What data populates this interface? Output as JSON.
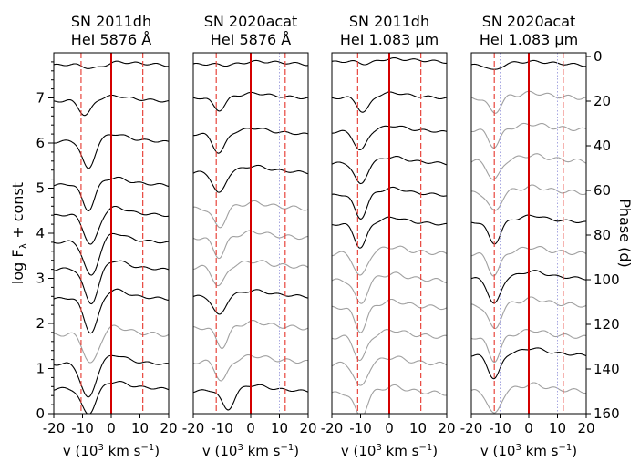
{
  "chart_data": {
    "type": "line",
    "y_axis_label": "log F",
    "y_axis_label_sub": "λ",
    "y_axis_label_rest": " + const",
    "y_ticks": [
      0,
      1,
      2,
      3,
      4,
      5,
      6,
      7
    ],
    "ylim": [
      0,
      8
    ],
    "secondary_axis_label": "Phase (d)",
    "secondary_ticks": [
      0,
      20,
      40,
      60,
      80,
      100,
      120,
      140,
      160
    ],
    "secondary_lim": [
      0,
      160
    ],
    "x_axis_label_main": "v (10",
    "x_axis_label_sup1": "3",
    "x_axis_label_mid": " km s",
    "x_axis_label_sup2": "−1",
    "x_axis_label_end": ")",
    "x_ticks": [
      -20,
      -10,
      0,
      10,
      20
    ],
    "x_tick_labels": [
      "-20",
      "-10",
      "0",
      "10",
      "20"
    ],
    "xlim": [
      -20,
      20
    ],
    "panels": [
      {
        "title_line1": "SN 2011dh",
        "title_line2": "HeI 5876 Å",
        "dashed_lines_x": [
          -10.5,
          11
        ],
        "dotted_lines_x": [],
        "spectra": [
          {
            "offset": 7.78,
            "color": "black",
            "depth": 0.12,
            "vmin": -6,
            "width": 5
          },
          {
            "offset": 6.98,
            "color": "black",
            "depth": 0.35,
            "vmin": -9,
            "width": 3
          },
          {
            "offset": 6.08,
            "color": "black",
            "depth": 0.65,
            "vmin": -8,
            "width": 3
          },
          {
            "offset": 5.12,
            "color": "black",
            "depth": 0.6,
            "vmin": -8,
            "width": 3
          },
          {
            "offset": 4.45,
            "color": "black",
            "depth": 0.7,
            "vmin": -7,
            "width": 3.5
          },
          {
            "offset": 3.85,
            "color": "black",
            "depth": 0.8,
            "vmin": -7,
            "width": 3.5
          },
          {
            "offset": 3.25,
            "color": "black",
            "depth": 0.8,
            "vmin": -7,
            "width": 3.5
          },
          {
            "offset": 2.6,
            "color": "black",
            "depth": 0.8,
            "vmin": -7,
            "width": 3.5
          },
          {
            "offset": 1.8,
            "color": "gray",
            "depth": 0.7,
            "vmin": -7,
            "width": 3.5
          },
          {
            "offset": 1.15,
            "color": "black",
            "depth": 0.8,
            "vmin": -8,
            "width": 3.5
          },
          {
            "offset": 0.6,
            "color": "black",
            "depth": 0.6,
            "vmin": -8,
            "width": 3.5
          }
        ]
      },
      {
        "title_line1": "SN 2020acat",
        "title_line2": "HeI 5876 Å",
        "dashed_lines_x": [
          -12,
          12
        ],
        "dotted_lines_x": [
          -10,
          10
        ],
        "spectra": [
          {
            "offset": 7.8,
            "color": "black",
            "depth": 0.06,
            "vmin": -8,
            "width": 6
          },
          {
            "offset": 7.05,
            "color": "black",
            "depth": 0.3,
            "vmin": -11,
            "width": 3
          },
          {
            "offset": 6.25,
            "color": "black",
            "depth": 0.45,
            "vmin": -11,
            "width": 3
          },
          {
            "offset": 5.4,
            "color": "black",
            "depth": 0.5,
            "vmin": -11,
            "width": 3
          },
          {
            "offset": 4.6,
            "color": "gray",
            "depth": 0.45,
            "vmin": -11,
            "width": 3
          },
          {
            "offset": 3.95,
            "color": "gray",
            "depth": 0.45,
            "vmin": -11,
            "width": 3
          },
          {
            "offset": 3.3,
            "color": "gray",
            "depth": 0.45,
            "vmin": -11,
            "width": 3
          },
          {
            "offset": 2.65,
            "color": "black",
            "depth": 0.45,
            "vmin": -11,
            "width": 3
          },
          {
            "offset": 1.95,
            "color": "gray",
            "depth": 0.45,
            "vmin": -10,
            "width": 3
          },
          {
            "offset": 1.2,
            "color": "gray",
            "depth": 0.45,
            "vmin": -10,
            "width": 3
          },
          {
            "offset": 0.55,
            "color": "black",
            "depth": 0.45,
            "vmin": -8,
            "width": 3
          }
        ]
      },
      {
        "title_line1": "SN 2011dh",
        "title_line2": "HeI 1.083 µm",
        "dashed_lines_x": [
          -11,
          11
        ],
        "dotted_lines_x": [],
        "spectra": [
          {
            "offset": 7.85,
            "color": "black",
            "depth": 0.08,
            "vmin": -8,
            "width": 4
          },
          {
            "offset": 7.05,
            "color": "black",
            "depth": 0.35,
            "vmin": -9,
            "width": 3
          },
          {
            "offset": 6.3,
            "color": "black",
            "depth": 0.45,
            "vmin": -10,
            "width": 3
          },
          {
            "offset": 5.6,
            "color": "black",
            "depth": 0.5,
            "vmin": -10,
            "width": 3
          },
          {
            "offset": 4.9,
            "color": "black",
            "depth": 0.55,
            "vmin": -10,
            "width": 3
          },
          {
            "offset": 4.25,
            "color": "black",
            "depth": 0.55,
            "vmin": -10,
            "width": 3
          },
          {
            "offset": 3.6,
            "color": "gray",
            "depth": 0.55,
            "vmin": -10,
            "width": 3
          },
          {
            "offset": 3.0,
            "color": "gray",
            "depth": 0.55,
            "vmin": -10,
            "width": 3
          },
          {
            "offset": 2.4,
            "color": "gray",
            "depth": 0.55,
            "vmin": -10,
            "width": 3
          },
          {
            "offset": 1.75,
            "color": "gray",
            "depth": 0.55,
            "vmin": -10,
            "width": 3
          },
          {
            "offset": 1.15,
            "color": "gray",
            "depth": 0.55,
            "vmin": -10,
            "width": 3
          },
          {
            "offset": 0.5,
            "color": "gray",
            "depth": 0.55,
            "vmin": -10,
            "width": 3
          }
        ]
      },
      {
        "title_line1": "SN 2020acat",
        "title_line2": "HeI 1.083 µm",
        "dashed_lines_x": [
          -12,
          12
        ],
        "dotted_lines_x": [
          -10,
          10
        ],
        "spectra": [
          {
            "offset": 7.78,
            "color": "black",
            "depth": 0.15,
            "vmin": -12,
            "width": 3
          },
          {
            "offset": 7.05,
            "color": "gray",
            "depth": 0.35,
            "vmin": -12,
            "width": 3
          },
          {
            "offset": 6.35,
            "color": "gray",
            "depth": 0.4,
            "vmin": -12,
            "width": 3
          },
          {
            "offset": 5.65,
            "color": "gray",
            "depth": 0.45,
            "vmin": -12,
            "width": 3
          },
          {
            "offset": 4.95,
            "color": "gray",
            "depth": 0.45,
            "vmin": -12,
            "width": 3
          },
          {
            "offset": 4.3,
            "color": "black",
            "depth": 0.5,
            "vmin": -12,
            "width": 3
          },
          {
            "offset": 3.6,
            "color": "gray",
            "depth": 0.5,
            "vmin": -12,
            "width": 3
          },
          {
            "offset": 3.05,
            "color": "black",
            "depth": 0.6,
            "vmin": -12,
            "width": 3
          },
          {
            "offset": 2.45,
            "color": "gray",
            "depth": 0.55,
            "vmin": -12,
            "width": 3
          },
          {
            "offset": 1.75,
            "color": "gray",
            "depth": 0.55,
            "vmin": -12,
            "width": 3
          },
          {
            "offset": 1.35,
            "color": "black",
            "depth": 0.55,
            "vmin": -12,
            "width": 3
          },
          {
            "offset": 0.55,
            "color": "gray",
            "depth": 0.55,
            "vmin": -12,
            "width": 3
          }
        ]
      }
    ],
    "colors": {
      "black": "#000000",
      "gray": "#a0a0a0",
      "zero_line": "#d40000",
      "dashed": "#e8453c",
      "dotted": "#a7a7e0"
    }
  }
}
